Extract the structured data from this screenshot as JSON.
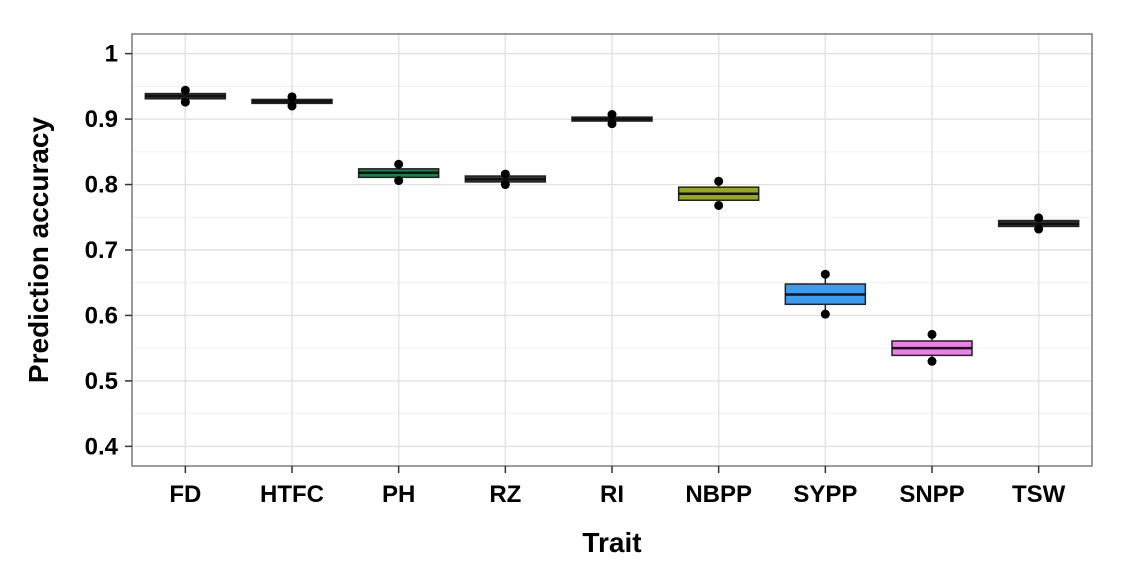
{
  "chart_data": {
    "type": "box",
    "title": "",
    "xlabel": "Trait",
    "ylabel": "Prediction accuracy",
    "ylim": [
      0.37,
      1.03
    ],
    "yticks": [
      0.4,
      0.5,
      0.6,
      0.7,
      0.8,
      0.9,
      1
    ],
    "ytick_labels": [
      "0.4",
      "0.5",
      "0.6",
      "0.7",
      "0.8",
      "0.9",
      "1"
    ],
    "grid": true,
    "categories": [
      "FD",
      "HTFC",
      "PH",
      "RZ",
      "RI",
      "NBPP",
      "SYPP",
      "SNPP",
      "TSW"
    ],
    "boxes": [
      {
        "category": "FD",
        "q1": 0.931,
        "median": 0.935,
        "q3": 0.939,
        "whisker_low": 0.929,
        "whisker_high": 0.941,
        "outliers": [
          0.944,
          0.926
        ],
        "fill": "#333333"
      },
      {
        "category": "HTFC",
        "q1": 0.924,
        "median": 0.927,
        "q3": 0.93,
        "whisker_low": 0.922,
        "whisker_high": 0.932,
        "outliers": [
          0.934,
          0.92
        ],
        "fill": "#444444"
      },
      {
        "category": "PH",
        "q1": 0.811,
        "median": 0.818,
        "q3": 0.824,
        "whisker_low": 0.809,
        "whisker_high": 0.826,
        "outliers": [
          0.831,
          0.806
        ],
        "fill": "#1e7f4f"
      },
      {
        "category": "RZ",
        "q1": 0.804,
        "median": 0.808,
        "q3": 0.813,
        "whisker_low": 0.803,
        "whisker_high": 0.814,
        "outliers": [
          0.816,
          0.8
        ],
        "fill": "#3a3a3a"
      },
      {
        "category": "RI",
        "q1": 0.897,
        "median": 0.9,
        "q3": 0.903,
        "whisker_low": 0.895,
        "whisker_high": 0.905,
        "outliers": [
          0.907,
          0.893
        ],
        "fill": "#333333"
      },
      {
        "category": "NBPP",
        "q1": 0.776,
        "median": 0.786,
        "q3": 0.796,
        "whisker_low": 0.772,
        "whisker_high": 0.8,
        "outliers": [
          0.805,
          0.768
        ],
        "fill": "#9aa71e"
      },
      {
        "category": "SYPP",
        "q1": 0.617,
        "median": 0.632,
        "q3": 0.648,
        "whisker_low": 0.605,
        "whisker_high": 0.66,
        "outliers": [
          0.663,
          0.602
        ],
        "fill": "#3d9cf0"
      },
      {
        "category": "SNPP",
        "q1": 0.539,
        "median": 0.55,
        "q3": 0.561,
        "whisker_low": 0.533,
        "whisker_high": 0.567,
        "outliers": [
          0.571,
          0.53
        ],
        "fill": "#ee7fe8"
      },
      {
        "category": "TSW",
        "q1": 0.736,
        "median": 0.74,
        "q3": 0.745,
        "whisker_low": 0.734,
        "whisker_high": 0.747,
        "outliers": [
          0.749,
          0.732
        ],
        "fill": "#333333"
      }
    ]
  }
}
